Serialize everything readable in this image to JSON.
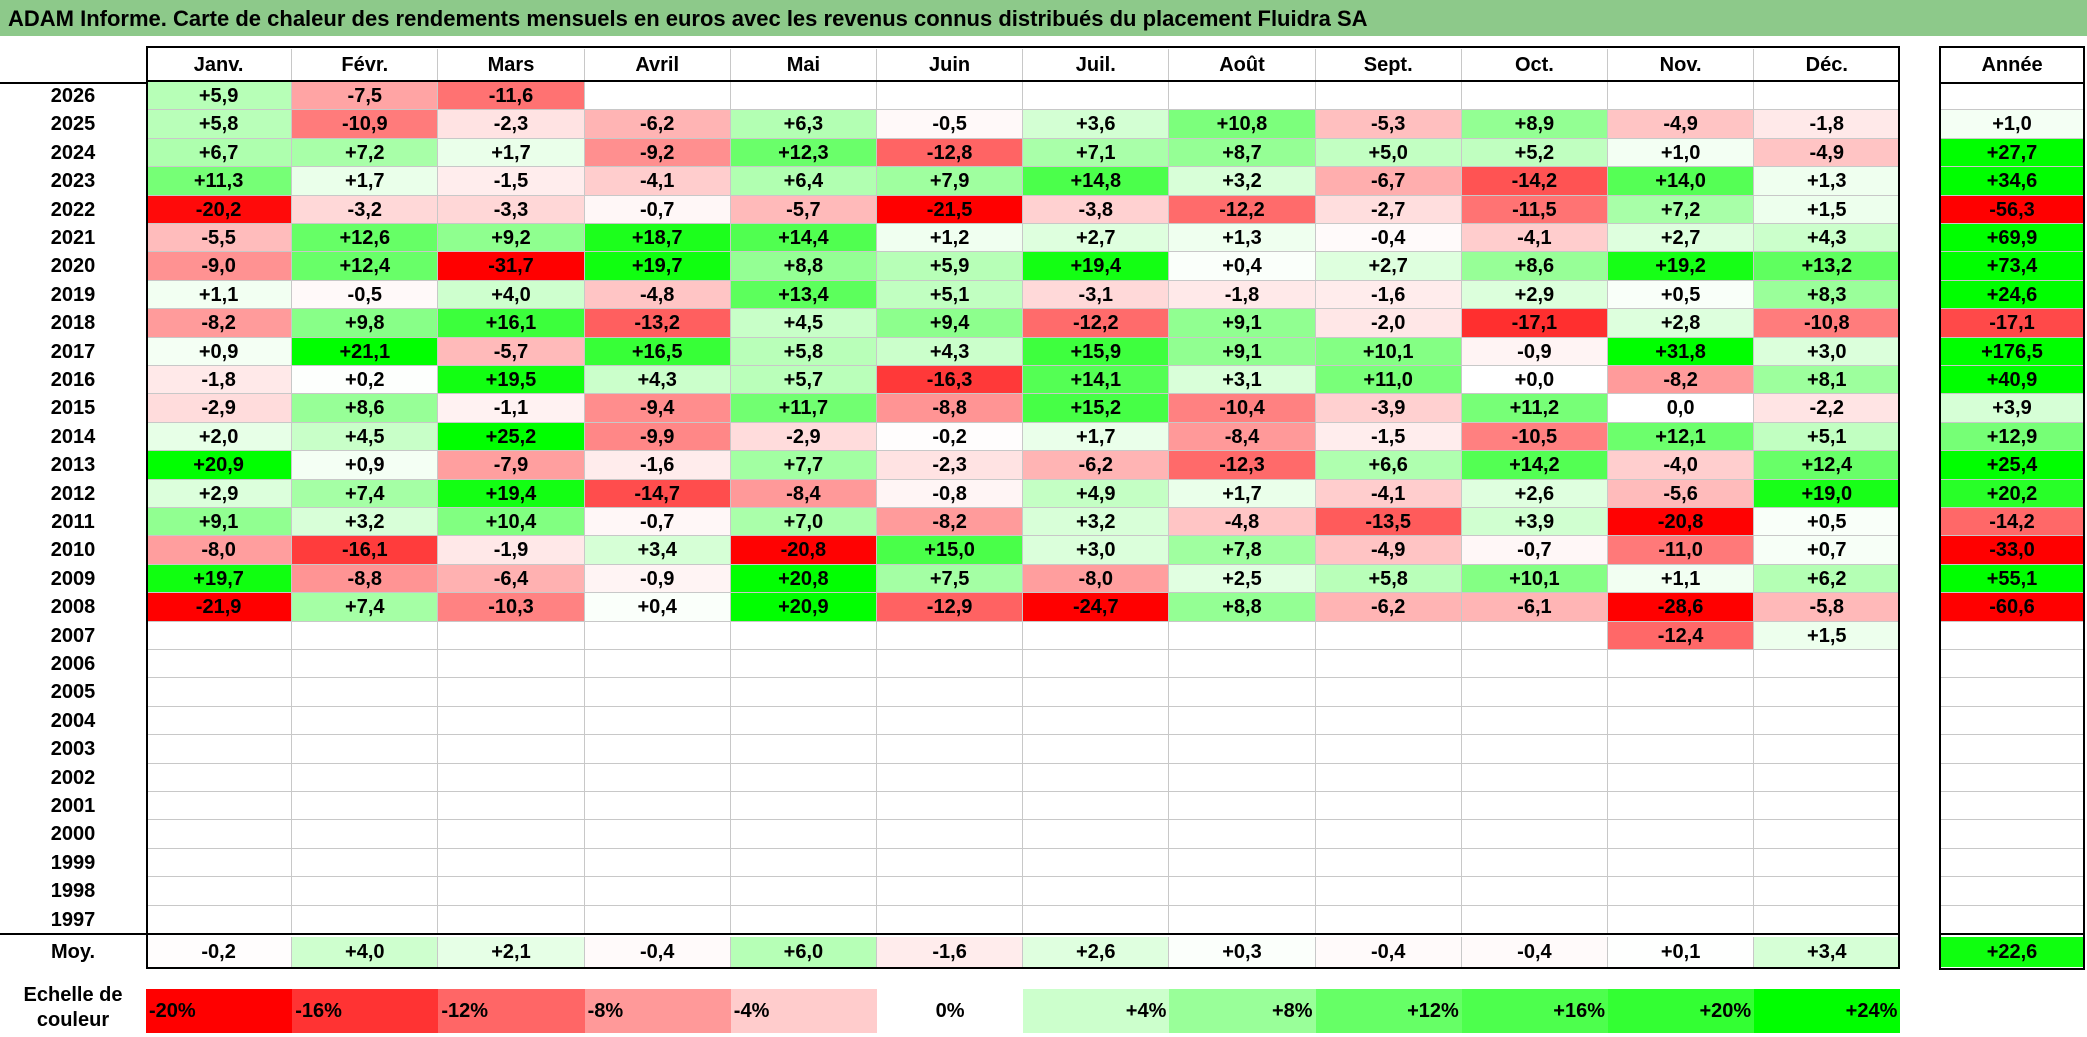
{
  "title": "ADAM Informe. Carte de chaleur des rendements mensuels en euros avec les revenus connus distribués du placement Fluidra SA",
  "chart_data": {
    "type": "heatmap",
    "title": "ADAM Informe. Carte de chaleur des rendements mensuels en euros avec les revenus connus distribués du placement Fluidra SA",
    "months": [
      "Janv.",
      "Févr.",
      "Mars",
      "Avril",
      "Mai",
      "Juin",
      "Juil.",
      "Août",
      "Sept.",
      "Oct.",
      "Nov.",
      "Déc."
    ],
    "year_header": "Année",
    "avg_label": "Moy.",
    "rows": [
      {
        "year": "2026",
        "values": [
          "+5,9",
          "-7,5",
          "-11,6",
          "",
          "",
          "",
          "",
          "",
          "",
          "",
          "",
          ""
        ],
        "annual": ""
      },
      {
        "year": "2025",
        "values": [
          "+5,8",
          "-10,9",
          "-2,3",
          "-6,2",
          "+6,3",
          "-0,5",
          "+3,6",
          "+10,8",
          "-5,3",
          "+8,9",
          "-4,9",
          "-1,8"
        ],
        "annual": "+1,0"
      },
      {
        "year": "2024",
        "values": [
          "+6,7",
          "+7,2",
          "+1,7",
          "-9,2",
          "+12,3",
          "-12,8",
          "+7,1",
          "+8,7",
          "+5,0",
          "+5,2",
          "+1,0",
          "-4,9"
        ],
        "annual": "+27,7"
      },
      {
        "year": "2023",
        "values": [
          "+11,3",
          "+1,7",
          "-1,5",
          "-4,1",
          "+6,4",
          "+7,9",
          "+14,8",
          "+3,2",
          "-6,7",
          "-14,2",
          "+14,0",
          "+1,3"
        ],
        "annual": "+34,6"
      },
      {
        "year": "2022",
        "values": [
          "-20,2",
          "-3,2",
          "-3,3",
          "-0,7",
          "-5,7",
          "-21,5",
          "-3,8",
          "-12,2",
          "-2,7",
          "-11,5",
          "+7,2",
          "+1,5"
        ],
        "annual": "-56,3"
      },
      {
        "year": "2021",
        "values": [
          "-5,5",
          "+12,6",
          "+9,2",
          "+18,7",
          "+14,4",
          "+1,2",
          "+2,7",
          "+1,3",
          "-0,4",
          "-4,1",
          "+2,7",
          "+4,3"
        ],
        "annual": "+69,9"
      },
      {
        "year": "2020",
        "values": [
          "-9,0",
          "+12,4",
          "-31,7",
          "+19,7",
          "+8,8",
          "+5,9",
          "+19,4",
          "+0,4",
          "+2,7",
          "+8,6",
          "+19,2",
          "+13,2"
        ],
        "annual": "+73,4"
      },
      {
        "year": "2019",
        "values": [
          "+1,1",
          "-0,5",
          "+4,0",
          "-4,8",
          "+13,4",
          "+5,1",
          "-3,1",
          "-1,8",
          "-1,6",
          "+2,9",
          "+0,5",
          "+8,3"
        ],
        "annual": "+24,6"
      },
      {
        "year": "2018",
        "values": [
          "-8,2",
          "+9,8",
          "+16,1",
          "-13,2",
          "+4,5",
          "+9,4",
          "-12,2",
          "+9,1",
          "-2,0",
          "-17,1",
          "+2,8",
          "-10,8"
        ],
        "annual": "-17,1"
      },
      {
        "year": "2017",
        "values": [
          "+0,9",
          "+21,1",
          "-5,7",
          "+16,5",
          "+5,8",
          "+4,3",
          "+15,9",
          "+9,1",
          "+10,1",
          "-0,9",
          "+31,8",
          "+3,0"
        ],
        "annual": "+176,5"
      },
      {
        "year": "2016",
        "values": [
          "-1,8",
          "+0,2",
          "+19,5",
          "+4,3",
          "+5,7",
          "-16,3",
          "+14,1",
          "+3,1",
          "+11,0",
          "+0,0",
          "-8,2",
          "+8,1"
        ],
        "annual": "+40,9"
      },
      {
        "year": "2015",
        "values": [
          "-2,9",
          "+8,6",
          "-1,1",
          "-9,4",
          "+11,7",
          "-8,8",
          "+15,2",
          "-10,4",
          "-3,9",
          "+11,2",
          "0,0",
          "-2,2"
        ],
        "annual": "+3,9"
      },
      {
        "year": "2014",
        "values": [
          "+2,0",
          "+4,5",
          "+25,2",
          "-9,9",
          "-2,9",
          "-0,2",
          "+1,7",
          "-8,4",
          "-1,5",
          "-10,5",
          "+12,1",
          "+5,1"
        ],
        "annual": "+12,9"
      },
      {
        "year": "2013",
        "values": [
          "+20,9",
          "+0,9",
          "-7,9",
          "-1,6",
          "+7,7",
          "-2,3",
          "-6,2",
          "-12,3",
          "+6,6",
          "+14,2",
          "-4,0",
          "+12,4"
        ],
        "annual": "+25,4"
      },
      {
        "year": "2012",
        "values": [
          "+2,9",
          "+7,4",
          "+19,4",
          "-14,7",
          "-8,4",
          "-0,8",
          "+4,9",
          "+1,7",
          "-4,1",
          "+2,6",
          "-5,6",
          "+19,0"
        ],
        "annual": "+20,2"
      },
      {
        "year": "2011",
        "values": [
          "+9,1",
          "+3,2",
          "+10,4",
          "-0,7",
          "+7,0",
          "-8,2",
          "+3,2",
          "-4,8",
          "-13,5",
          "+3,9",
          "-20,8",
          "+0,5"
        ],
        "annual": "-14,2"
      },
      {
        "year": "2010",
        "values": [
          "-8,0",
          "-16,1",
          "-1,9",
          "+3,4",
          "-20,8",
          "+15,0",
          "+3,0",
          "+7,8",
          "-4,9",
          "-0,7",
          "-11,0",
          "+0,7"
        ],
        "annual": "-33,0"
      },
      {
        "year": "2009",
        "values": [
          "+19,7",
          "-8,8",
          "-6,4",
          "-0,9",
          "+20,8",
          "+7,5",
          "-8,0",
          "+2,5",
          "+5,8",
          "+10,1",
          "+1,1",
          "+6,2"
        ],
        "annual": "+55,1"
      },
      {
        "year": "2008",
        "values": [
          "-21,9",
          "+7,4",
          "-10,3",
          "+0,4",
          "+20,9",
          "-12,9",
          "-24,7",
          "+8,8",
          "-6,2",
          "-6,1",
          "-28,6",
          "-5,8"
        ],
        "annual": "-60,6"
      },
      {
        "year": "2007",
        "values": [
          "",
          "",
          "",
          "",
          "",
          "",
          "",
          "",
          "",
          "",
          "-12,4",
          "+1,5"
        ],
        "annual": ""
      },
      {
        "year": "2006",
        "values": [
          "",
          "",
          "",
          "",
          "",
          "",
          "",
          "",
          "",
          "",
          "",
          ""
        ],
        "annual": ""
      },
      {
        "year": "2005",
        "values": [
          "",
          "",
          "",
          "",
          "",
          "",
          "",
          "",
          "",
          "",
          "",
          ""
        ],
        "annual": ""
      },
      {
        "year": "2004",
        "values": [
          "",
          "",
          "",
          "",
          "",
          "",
          "",
          "",
          "",
          "",
          "",
          ""
        ],
        "annual": ""
      },
      {
        "year": "2003",
        "values": [
          "",
          "",
          "",
          "",
          "",
          "",
          "",
          "",
          "",
          "",
          "",
          ""
        ],
        "annual": ""
      },
      {
        "year": "2002",
        "values": [
          "",
          "",
          "",
          "",
          "",
          "",
          "",
          "",
          "",
          "",
          "",
          ""
        ],
        "annual": ""
      },
      {
        "year": "2001",
        "values": [
          "",
          "",
          "",
          "",
          "",
          "",
          "",
          "",
          "",
          "",
          "",
          ""
        ],
        "annual": ""
      },
      {
        "year": "2000",
        "values": [
          "",
          "",
          "",
          "",
          "",
          "",
          "",
          "",
          "",
          "",
          "",
          ""
        ],
        "annual": ""
      },
      {
        "year": "1999",
        "values": [
          "",
          "",
          "",
          "",
          "",
          "",
          "",
          "",
          "",
          "",
          "",
          ""
        ],
        "annual": ""
      },
      {
        "year": "1998",
        "values": [
          "",
          "",
          "",
          "",
          "",
          "",
          "",
          "",
          "",
          "",
          "",
          ""
        ],
        "annual": ""
      },
      {
        "year": "1997",
        "values": [
          "",
          "",
          "",
          "",
          "",
          "",
          "",
          "",
          "",
          "",
          "",
          ""
        ],
        "annual": ""
      }
    ],
    "averages": [
      "-0,2",
      "+4,0",
      "+2,1",
      "-0,4",
      "+6,0",
      "-1,6",
      "+2,6",
      "+0,3",
      "-0,4",
      "-0,4",
      "+0,1",
      "+3,4"
    ],
    "annual_average": "+22,6",
    "scale_label": "Echelle de couleur",
    "scale": [
      {
        "label": "-20%",
        "value": -20,
        "color": "#ff0000"
      },
      {
        "label": "-16%",
        "value": -16,
        "color": "#ff3333"
      },
      {
        "label": "-12%",
        "value": -12,
        "color": "#ff6666"
      },
      {
        "label": "-8%",
        "value": -8,
        "color": "#ff9999"
      },
      {
        "label": "-4%",
        "value": -4,
        "color": "#ffcccc"
      },
      {
        "label": "0%",
        "value": 0,
        "color": "#ffffff"
      },
      {
        "label": "+4%",
        "value": 4,
        "color": "#ccffcc"
      },
      {
        "label": "+8%",
        "value": 8,
        "color": "#99ff99"
      },
      {
        "label": "+12%",
        "value": 12,
        "color": "#66ff66"
      },
      {
        "label": "+16%",
        "value": 16,
        "color": "#4dff4d"
      },
      {
        "label": "+20%",
        "value": 20,
        "color": "#33ff33"
      },
      {
        "label": "+24%",
        "value": 24,
        "color": "#00ff00"
      }
    ]
  }
}
